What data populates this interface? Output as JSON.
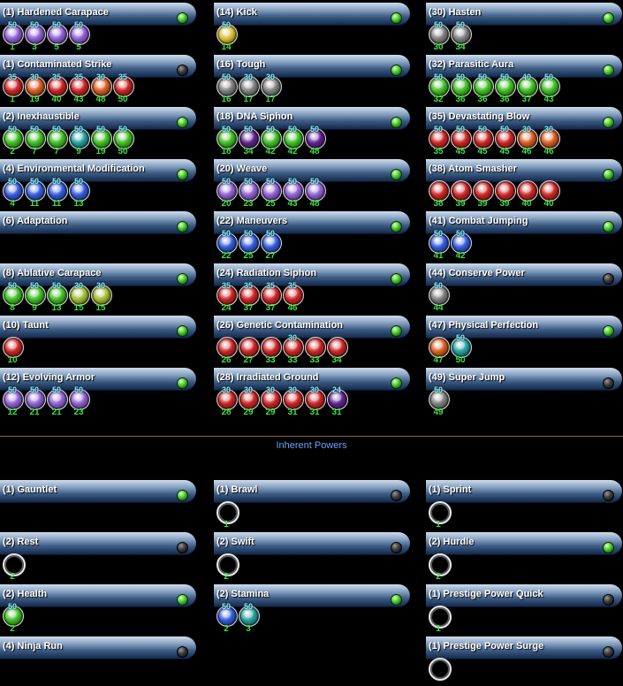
{
  "colors": {
    "gold": "#d7b82a",
    "violet": "#8a5ad0",
    "red": "#c81f1f",
    "green": "#39b91c",
    "teal": "#1f9a9a",
    "blue": "#2d55d9",
    "white": "#e4e4e4",
    "gray": "#7a7a7a",
    "purple": "#5a1d8a",
    "orange": "#d4561c",
    "yellowgreen": "#9bb82a"
  },
  "powers": [
    {
      "name": "(1) Hardened Carapace",
      "active": true,
      "slots": [
        {
          "level": "50",
          "slot": "1",
          "color": "violet"
        },
        {
          "level": "50",
          "slot": "3",
          "color": "violet"
        },
        {
          "level": "50",
          "slot": "5",
          "color": "violet"
        },
        {
          "level": "50",
          "slot": "5",
          "color": "violet"
        }
      ]
    },
    {
      "name": "(14) Kick",
      "active": true,
      "slots": [
        {
          "level": "50",
          "slot": "14",
          "color": "gold"
        }
      ]
    },
    {
      "name": "(30) Hasten",
      "active": true,
      "slots": [
        {
          "level": "50",
          "slot": "30",
          "color": "gray"
        },
        {
          "level": "50",
          "slot": "34",
          "color": "gray"
        }
      ]
    },
    {
      "name": "(1) Contaminated Strike",
      "active": false,
      "slots": [
        {
          "level": "35",
          "slot": "1",
          "color": "red"
        },
        {
          "level": "30",
          "slot": "19",
          "color": "orange"
        },
        {
          "level": "35",
          "slot": "40",
          "color": "red"
        },
        {
          "level": "35",
          "slot": "43",
          "color": "red"
        },
        {
          "level": "30",
          "slot": "48",
          "color": "orange"
        },
        {
          "level": "35",
          "slot": "50",
          "color": "red"
        }
      ]
    },
    {
      "name": "(16) Tough",
      "active": true,
      "slots": [
        {
          "level": "50",
          "slot": "16",
          "color": "gray"
        },
        {
          "level": "30",
          "slot": "17",
          "color": "gray"
        },
        {
          "level": "30",
          "slot": "17",
          "color": "gray"
        }
      ]
    },
    {
      "name": "(32) Parasitic Aura",
      "active": true,
      "slots": [
        {
          "level": "50",
          "slot": "32",
          "color": "green"
        },
        {
          "level": "50",
          "slot": "36",
          "color": "green"
        },
        {
          "level": "50",
          "slot": "36",
          "color": "green"
        },
        {
          "level": "50",
          "slot": "36",
          "color": "green"
        },
        {
          "level": "40",
          "slot": "37",
          "color": "green"
        },
        {
          "level": "50",
          "slot": "43",
          "color": "green"
        }
      ]
    },
    {
      "name": "(2) Inexhaustible",
      "active": true,
      "slots": [
        {
          "level": "50",
          "slot": "2",
          "color": "green"
        },
        {
          "level": "50",
          "slot": "7",
          "color": "green"
        },
        {
          "level": "50",
          "slot": "7",
          "color": "green"
        },
        {
          "level": "50",
          "slot": "9",
          "color": "teal"
        },
        {
          "level": "50",
          "slot": "19",
          "color": "green"
        },
        {
          "level": "50",
          "slot": "50",
          "color": "green"
        }
      ]
    },
    {
      "name": "(18) DNA Siphon",
      "active": true,
      "slots": [
        {
          "level": "50",
          "slot": "18",
          "color": "green"
        },
        {
          "level": "50",
          "slot": "34",
          "color": "purple"
        },
        {
          "level": "50",
          "slot": "42",
          "color": "green"
        },
        {
          "level": "50",
          "slot": "42",
          "color": "green"
        },
        {
          "level": "50",
          "slot": "48",
          "color": "purple"
        }
      ]
    },
    {
      "name": "(35) Devastating Blow",
      "active": true,
      "slots": [
        {
          "level": "50",
          "slot": "35",
          "color": "red"
        },
        {
          "level": "50",
          "slot": "45",
          "color": "red"
        },
        {
          "level": "50",
          "slot": "45",
          "color": "red"
        },
        {
          "level": "50",
          "slot": "45",
          "color": "red"
        },
        {
          "level": "30",
          "slot": "46",
          "color": "orange"
        },
        {
          "level": "30",
          "slot": "46",
          "color": "orange"
        }
      ]
    },
    {
      "name": "(4) Environmental Modification",
      "active": true,
      "slots": [
        {
          "level": "50",
          "slot": "4",
          "color": "blue"
        },
        {
          "level": "50",
          "slot": "11",
          "color": "blue"
        },
        {
          "level": "50",
          "slot": "11",
          "color": "blue"
        },
        {
          "level": "50",
          "slot": "13",
          "color": "blue"
        }
      ]
    },
    {
      "name": "(20) Weave",
      "active": true,
      "slots": [
        {
          "level": "50",
          "slot": "20",
          "color": "violet"
        },
        {
          "level": "50",
          "slot": "23",
          "color": "violet"
        },
        {
          "level": "50",
          "slot": "25",
          "color": "violet"
        },
        {
          "level": "50",
          "slot": "43",
          "color": "violet"
        },
        {
          "level": "50",
          "slot": "48",
          "color": "violet"
        }
      ]
    },
    {
      "name": "(38) Atom Smasher",
      "active": true,
      "slots": [
        {
          "level": "",
          "slot": "38",
          "color": "red"
        },
        {
          "level": "",
          "slot": "39",
          "color": "red"
        },
        {
          "level": "",
          "slot": "39",
          "color": "red"
        },
        {
          "level": "",
          "slot": "39",
          "color": "red"
        },
        {
          "level": "",
          "slot": "40",
          "color": "red"
        },
        {
          "level": "",
          "slot": "40",
          "color": "red"
        }
      ]
    },
    {
      "name": "(6) Adaptation",
      "active": true,
      "slots": []
    },
    {
      "name": "(22) Maneuvers",
      "active": true,
      "slots": [
        {
          "level": "50",
          "slot": "22",
          "color": "blue"
        },
        {
          "level": "50",
          "slot": "25",
          "color": "blue"
        },
        {
          "level": "50",
          "slot": "27",
          "color": "blue"
        }
      ]
    },
    {
      "name": "(41) Combat Jumping",
      "active": true,
      "slots": [
        {
          "level": "50",
          "slot": "41",
          "color": "blue"
        },
        {
          "level": "50",
          "slot": "42",
          "color": "blue"
        }
      ]
    },
    {
      "name": "(8) Ablative Carapace",
      "active": true,
      "slots": [
        {
          "level": "50",
          "slot": "8",
          "color": "green"
        },
        {
          "level": "50",
          "slot": "9",
          "color": "green"
        },
        {
          "level": "50",
          "slot": "13",
          "color": "green"
        },
        {
          "level": "30",
          "slot": "15",
          "color": "yellowgreen"
        },
        {
          "level": "30",
          "slot": "15",
          "color": "yellowgreen"
        }
      ]
    },
    {
      "name": "(24) Radiation Siphon",
      "active": true,
      "slots": [
        {
          "level": "35",
          "slot": "24",
          "color": "red"
        },
        {
          "level": "35",
          "slot": "37",
          "color": "red"
        },
        {
          "level": "35",
          "slot": "37",
          "color": "red"
        },
        {
          "level": "35",
          "slot": "46",
          "color": "red"
        }
      ]
    },
    {
      "name": "(44) Conserve Power",
      "active": false,
      "slots": [
        {
          "level": "50",
          "slot": "44",
          "color": "gray"
        }
      ]
    },
    {
      "name": "(10) Taunt",
      "active": true,
      "slots": [
        {
          "level": "",
          "slot": "10",
          "color": "red"
        }
      ]
    },
    {
      "name": "(26) Genetic Contamination",
      "active": true,
      "slots": [
        {
          "level": "",
          "slot": "26",
          "color": "red"
        },
        {
          "level": "",
          "slot": "27",
          "color": "red"
        },
        {
          "level": "",
          "slot": "33",
          "color": "red"
        },
        {
          "level": "30",
          "slot": "33",
          "color": "red"
        },
        {
          "level": "",
          "slot": "33",
          "color": "red"
        },
        {
          "level": "",
          "slot": "34",
          "color": "red"
        }
      ]
    },
    {
      "name": "(47) Physical Perfection",
      "active": true,
      "slots": [
        {
          "level": "",
          "slot": "47",
          "color": "orange"
        },
        {
          "level": "50",
          "slot": "50",
          "color": "teal"
        }
      ]
    },
    {
      "name": "(12) Evolving Armor",
      "active": true,
      "slots": [
        {
          "level": "50",
          "slot": "12",
          "color": "violet"
        },
        {
          "level": "50",
          "slot": "21",
          "color": "violet"
        },
        {
          "level": "50",
          "slot": "21",
          "color": "violet"
        },
        {
          "level": "50",
          "slot": "23",
          "color": "violet"
        }
      ]
    },
    {
      "name": "(28) Irradiated Ground",
      "active": true,
      "slots": [
        {
          "level": "30",
          "slot": "28",
          "color": "red"
        },
        {
          "level": "30",
          "slot": "29",
          "color": "red"
        },
        {
          "level": "30",
          "slot": "29",
          "color": "red"
        },
        {
          "level": "30",
          "slot": "31",
          "color": "red"
        },
        {
          "level": "30",
          "slot": "31",
          "color": "red"
        },
        {
          "level": "24",
          "slot": "31",
          "color": "purple"
        }
      ]
    },
    {
      "name": "(49) Super Jump",
      "active": false,
      "slots": [
        {
          "level": "50",
          "slot": "49",
          "color": "gray"
        }
      ]
    }
  ],
  "inherent": {
    "title": "Inherent Powers",
    "powers": [
      {
        "name": "(1) Gauntlet",
        "active": true,
        "slots": []
      },
      {
        "name": "(1) Brawl",
        "active": false,
        "slots": [
          {
            "level": "",
            "slot": "1",
            "color": "empty"
          }
        ]
      },
      {
        "name": "(1) Sprint",
        "active": false,
        "slots": [
          {
            "level": "",
            "slot": "1",
            "color": "empty"
          }
        ]
      },
      {
        "name": "(2) Rest",
        "active": false,
        "slots": [
          {
            "level": "",
            "slot": "2",
            "color": "empty"
          }
        ]
      },
      {
        "name": "(2) Swift",
        "active": false,
        "slots": [
          {
            "level": "",
            "slot": "2",
            "color": "empty"
          }
        ]
      },
      {
        "name": "(2) Hurdle",
        "active": true,
        "slots": [
          {
            "level": "",
            "slot": "2",
            "color": "empty"
          }
        ]
      },
      {
        "name": "(2) Health",
        "active": true,
        "slots": [
          {
            "level": "50",
            "slot": "2",
            "color": "green"
          }
        ]
      },
      {
        "name": "(2) Stamina",
        "active": true,
        "slots": [
          {
            "level": "50",
            "slot": "2",
            "color": "blue"
          },
          {
            "level": "50",
            "slot": "3",
            "color": "teal"
          }
        ]
      },
      {
        "name": "(1) Prestige Power Quick",
        "active": false,
        "slots": [
          {
            "level": "",
            "slot": "1",
            "color": "empty"
          }
        ]
      },
      {
        "name": "(4) Ninja Run",
        "active": false,
        "slots": []
      },
      {
        "name": "",
        "active": null,
        "slots": []
      },
      {
        "name": "(1) Prestige Power Surge",
        "active": false,
        "slots": [
          {
            "level": "",
            "slot": "",
            "color": "empty"
          }
        ]
      }
    ]
  }
}
